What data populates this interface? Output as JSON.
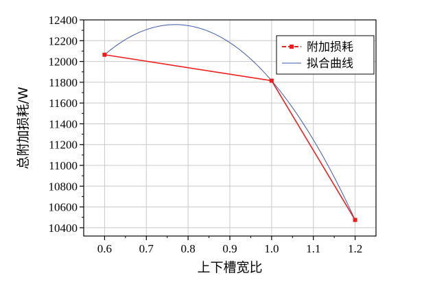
{
  "chart_data": {
    "type": "line",
    "xlabel": "上下槽宽比",
    "ylabel": "总附加损耗/W",
    "xlim": [
      0.55,
      1.25
    ],
    "ylim": [
      10320,
      12400
    ],
    "x_ticks": [
      0.6,
      0.7,
      0.8,
      0.9,
      1.0,
      1.1,
      1.2
    ],
    "x_tick_labels": [
      "0.6",
      "0.7",
      "0.8",
      "0.9",
      "1.0",
      "1.1",
      "1.2"
    ],
    "y_ticks": [
      10400,
      10600,
      10800,
      11000,
      11200,
      11400,
      11600,
      11800,
      12000,
      12200,
      12400
    ],
    "y_tick_labels": [
      "10400",
      "10600",
      "10800",
      "11000",
      "11200",
      "11400",
      "11600",
      "11800",
      "12000",
      "12200",
      "12400"
    ],
    "grid": true,
    "legend_position": "top-right",
    "series": [
      {
        "name": "附加损耗",
        "kind": "line-marker",
        "color": "#ee1c1c",
        "x": [
          0.6,
          1.0,
          1.2
        ],
        "y": [
          12065,
          11815,
          10475
        ]
      },
      {
        "name": "拟合曲线",
        "kind": "fit-curve",
        "color": "#3a56a8",
        "x": [
          0.6,
          1.0,
          1.2
        ],
        "y": [
          12065,
          11815,
          10475
        ]
      }
    ]
  }
}
